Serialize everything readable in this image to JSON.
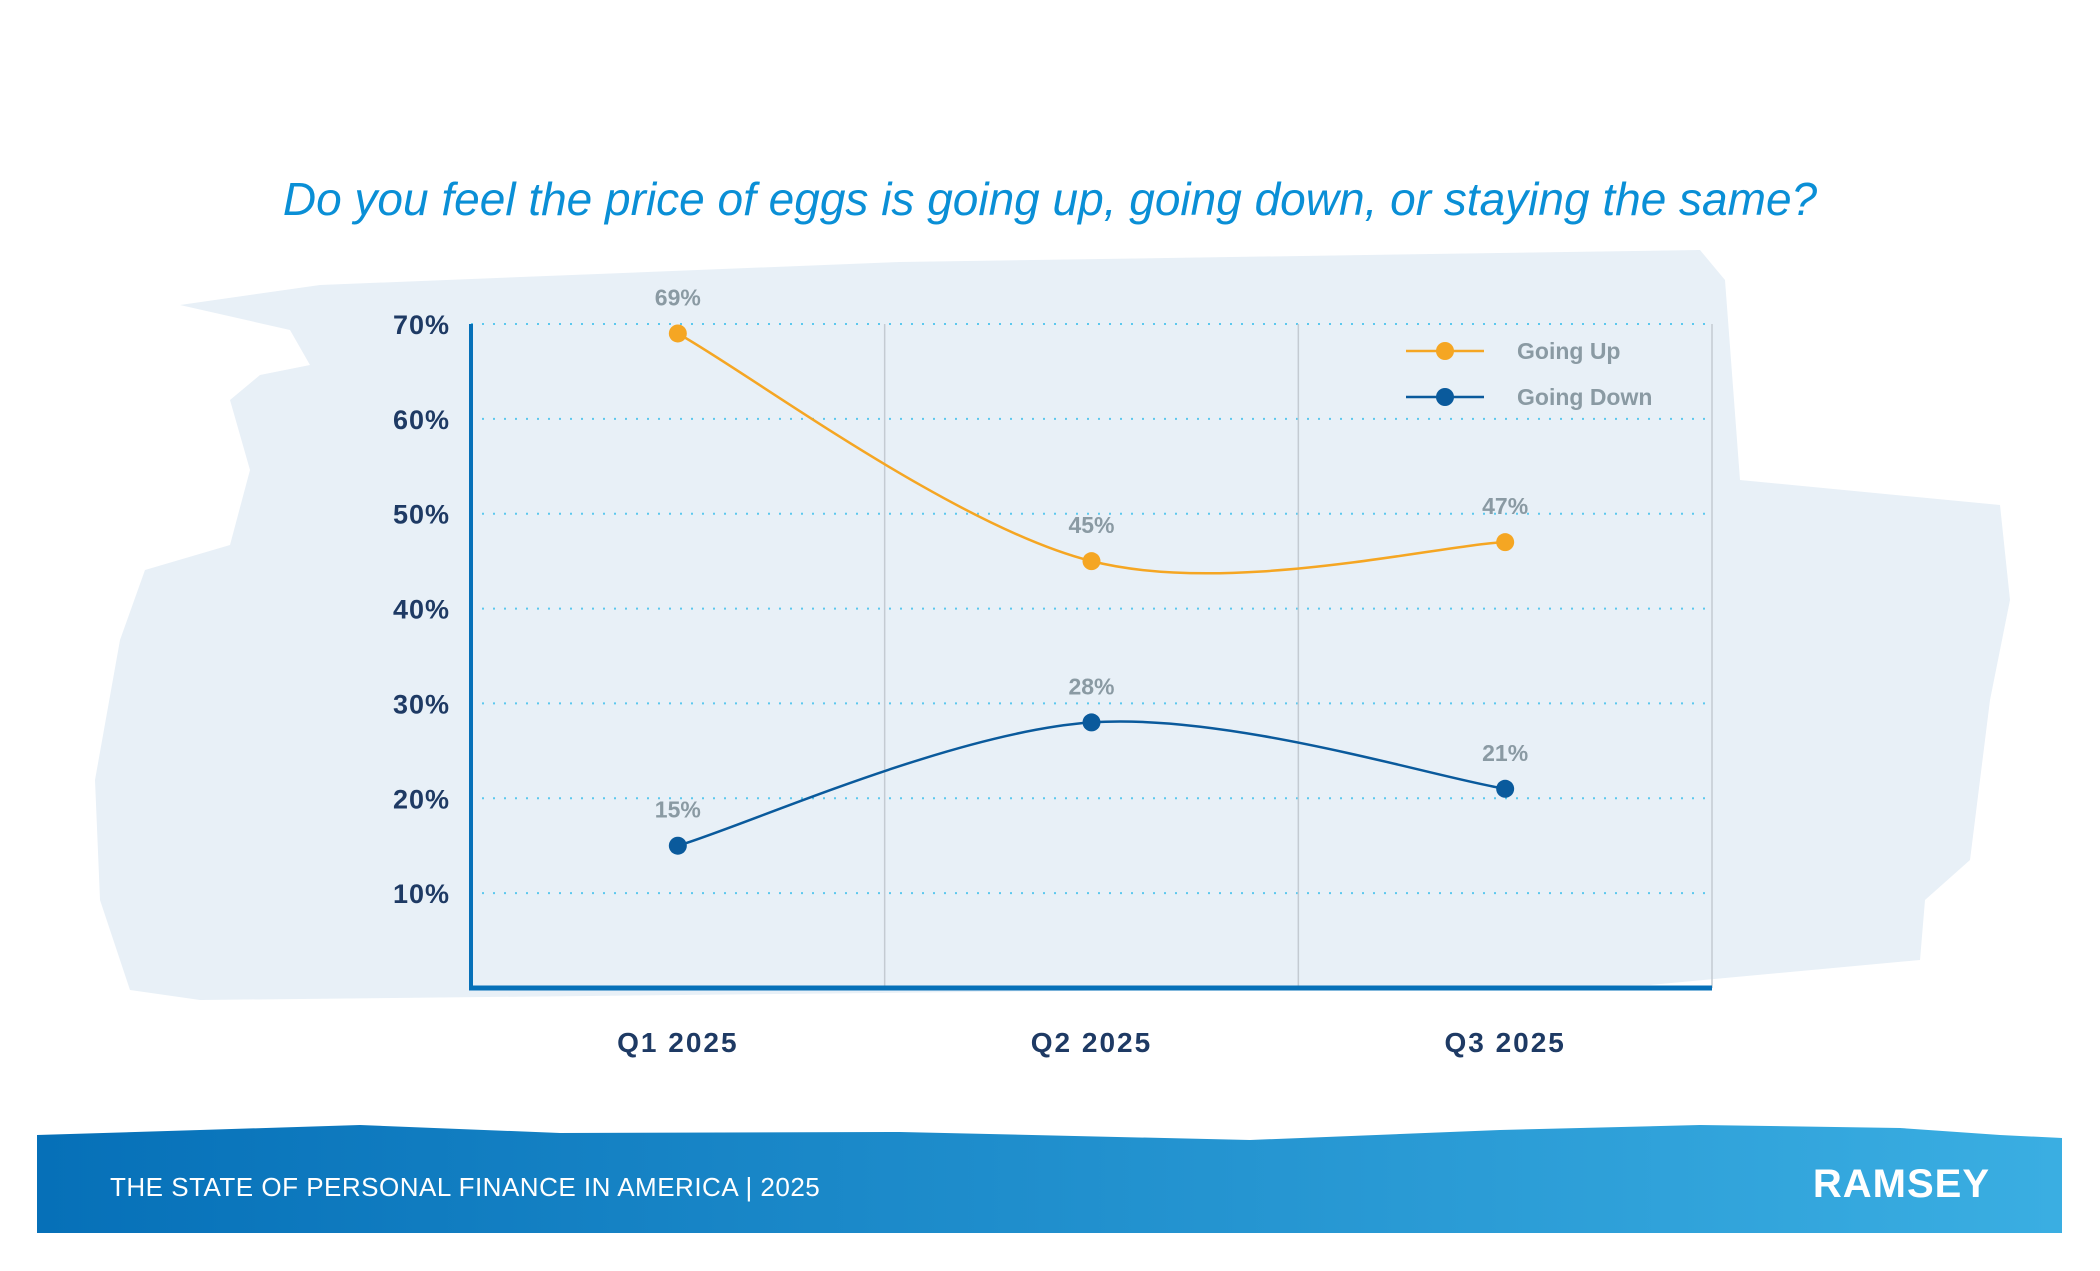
{
  "chart_data": {
    "type": "line",
    "title": "Do you feel the price of eggs is going up, going down, or staying the same?",
    "categories": [
      "Q1 2025",
      "Q2 2025",
      "Q3 2025"
    ],
    "series": [
      {
        "name": "Going Up",
        "values": [
          69,
          45,
          47
        ],
        "labels": [
          "69%",
          "45%",
          "47%"
        ],
        "color": "#f5a623"
      },
      {
        "name": "Going Down",
        "values": [
          15,
          28,
          21
        ],
        "labels": [
          "15%",
          "28%",
          "21%"
        ],
        "color": "#0a5a9c"
      }
    ],
    "yticks": [
      10,
      20,
      30,
      40,
      50,
      60,
      70
    ],
    "ytick_labels": [
      "10%",
      "20%",
      "30%",
      "40%",
      "50%",
      "60%",
      "70%"
    ],
    "ylim": [
      0,
      70
    ],
    "grid": true,
    "legend": "top-right",
    "xlabel": "",
    "ylabel": ""
  },
  "footer": {
    "text": "THE STATE OF PERSONAL FINANCE IN AMERICA | 2025",
    "logo": "RAMSEY"
  }
}
